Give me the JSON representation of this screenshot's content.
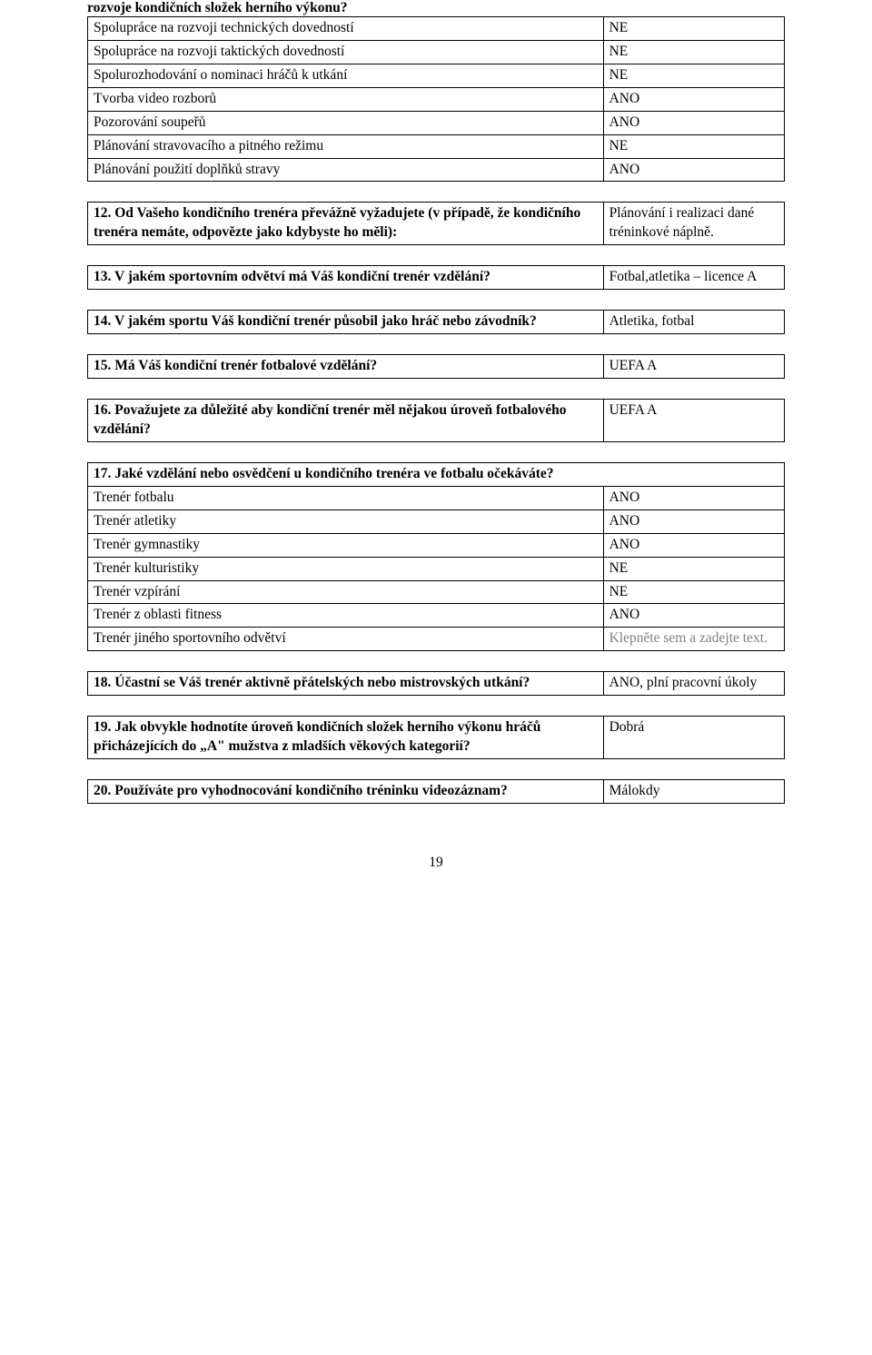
{
  "lead": "rozvoje kondičních složek herního výkonu?",
  "table1_rows": [
    {
      "label": "Spolupráce na rozvoji technických dovedností",
      "value": "NE"
    },
    {
      "label": "Spolupráce na rozvoji taktických dovedností",
      "value": "NE"
    },
    {
      "label": "Spolurozhodování o nominaci hráčů k utkání",
      "value": "NE"
    },
    {
      "label": "Tvorba video rozborů",
      "value": "ANO"
    },
    {
      "label": "Pozorování soupeřů",
      "value": "ANO"
    },
    {
      "label": "Plánování stravovacího a pitného režimu",
      "value": "NE"
    },
    {
      "label": "Plánování použití doplňků stravy",
      "value": "ANO"
    }
  ],
  "q12": {
    "question": "12. Od Vašeho kondičního trenéra převážně vyžadujete (v případě, že kondičního trenéra nemáte, odpovězte  jako kdybyste ho měli):",
    "answer": "Plánování i realizaci dané tréninkové náplně."
  },
  "q13": {
    "question": "13. V jakém sportovním odvětví má Váš kondiční trenér vzdělání?",
    "answer": "Fotbal,atletika – licence A"
  },
  "q14": {
    "question": "14. V jakém sportu Váš kondiční trenér působil jako hráč nebo závodník?",
    "answer": "Atletika, fotbal"
  },
  "q15": {
    "question": "15. Má Váš kondiční trenér fotbalové vzdělání?",
    "answer": "UEFA A"
  },
  "q16": {
    "question": "16. Považujete za důležité aby kondiční trenér měl nějakou úroveň fotbalového vzdělání?",
    "answer": "UEFA A"
  },
  "q17_head": "17. Jaké vzdělání nebo osvědčení u kondičního trenéra ve fotbalu očekáváte?",
  "q17_rows": [
    {
      "label": "Trenér fotbalu",
      "value": "ANO",
      "gray": false
    },
    {
      "label": "Trenér atletiky",
      "value": "ANO",
      "gray": false
    },
    {
      "label": "Trenér gymnastiky",
      "value": "ANO",
      "gray": false
    },
    {
      "label": "Trenér kulturistiky",
      "value": "NE",
      "gray": false
    },
    {
      "label": "Trenér vzpírání",
      "value": "NE",
      "gray": false
    },
    {
      "label": "Trenér z oblasti fitness",
      "value": "ANO",
      "gray": false
    },
    {
      "label": "Trenér jiného sportovního odvětví",
      "value": "Klepněte sem a zadejte text.",
      "gray": true
    }
  ],
  "q18": {
    "question": "18. Účastní se Váš trenér aktivně přátelských nebo mistrovských utkání?",
    "answer": "ANO, plní pracovní úkoly"
  },
  "q19": {
    "question": "19. Jak obvykle hodnotíte úroveň kondičních složek herního výkonu hráčů přicházejících do „A\" mužstva z mladších věkových kategorií?",
    "answer": "Dobrá"
  },
  "q20": {
    "question": "20. Používáte pro vyhodnocování kondičního tréninku videozáznam?",
    "answer": "Málokdy"
  },
  "page_number": "19"
}
